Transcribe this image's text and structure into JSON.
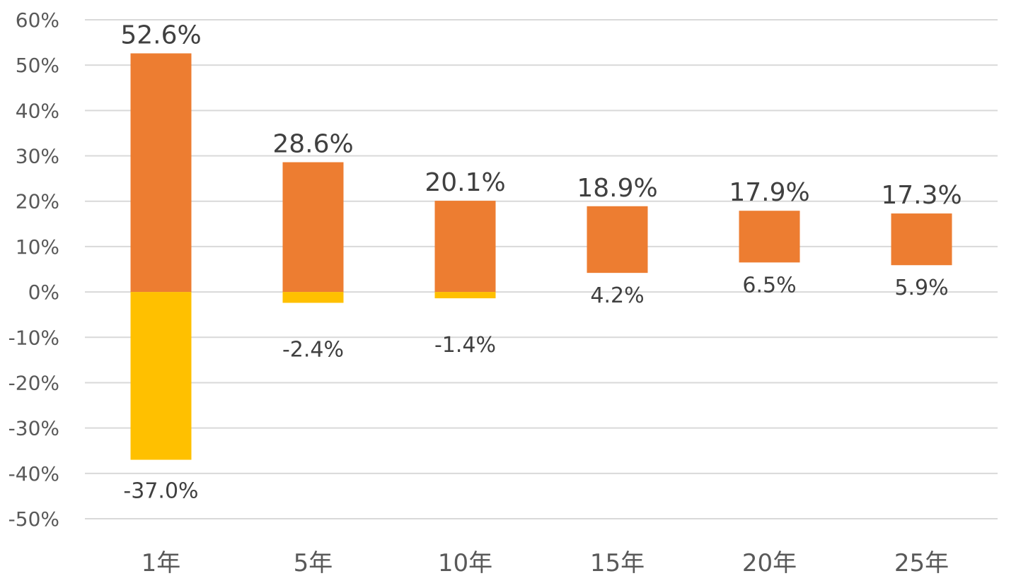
{
  "chart_data": {
    "type": "bar",
    "categories": [
      "1年",
      "5年",
      "10年",
      "15年",
      "20年",
      "25年"
    ],
    "series": [
      {
        "values": [
          52.6,
          28.6,
          20.1,
          18.9,
          17.9,
          17.3
        ],
        "color": "#ed7d31"
      },
      {
        "values": [
          -37.0,
          -2.4,
          -1.4,
          4.2,
          6.5,
          5.9
        ],
        "color": "#ffc000"
      }
    ],
    "max_labels": [
      "52.6%",
      "28.6%",
      "20.1%",
      "18.9%",
      "17.9%",
      "17.3%"
    ],
    "min_labels": [
      "-37.0%",
      "-2.4%",
      "-1.4%",
      "4.2%",
      "6.5%",
      "5.9%"
    ],
    "y_ticks": [
      "60%",
      "50%",
      "40%",
      "30%",
      "20%",
      "10%",
      "0%",
      "-10%",
      "-20%",
      "-30%",
      "-40%",
      "-50%"
    ],
    "ylim": [
      -50,
      60
    ],
    "grid": true,
    "colors": {
      "positive_bar": "#ed7d31",
      "negative_bar": "#ffc000",
      "grid": "#d9d9d9",
      "text": "#595959"
    }
  }
}
